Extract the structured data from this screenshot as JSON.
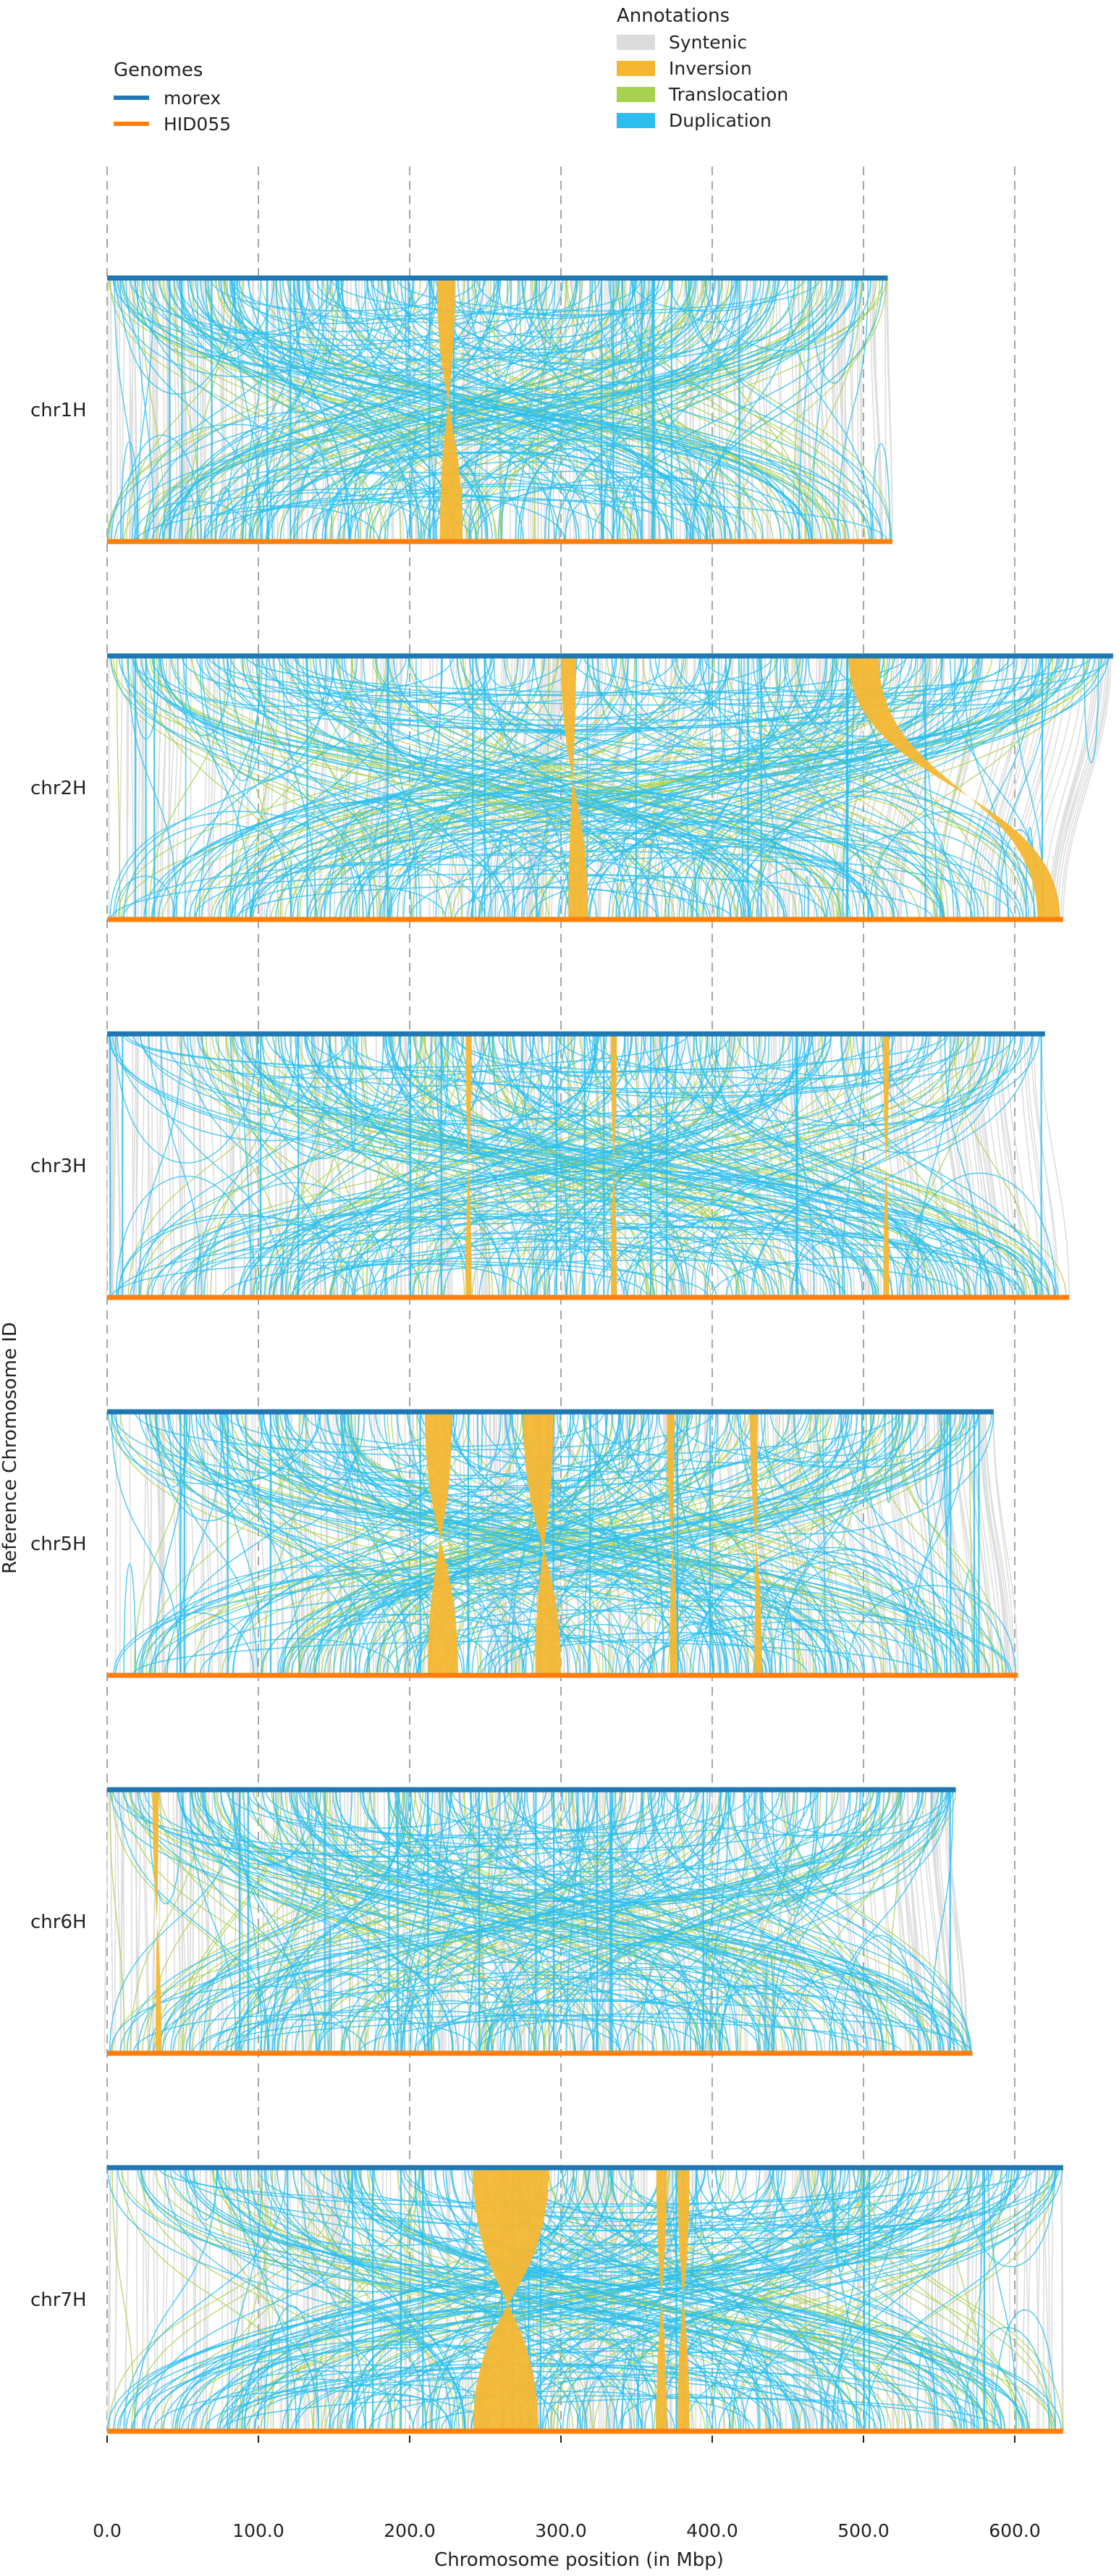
{
  "chart_data": {
    "type": "synteny",
    "xlabel": "Chromosome position (in Mbp)",
    "ylabel": "Reference Chromosome ID",
    "xlim": [
      0,
      670
    ],
    "xticks": [
      0,
      100,
      200,
      300,
      400,
      500,
      600
    ],
    "xtick_labels": [
      "0.0",
      "100.0",
      "200.0",
      "300.0",
      "400.0",
      "500.0",
      "600.0"
    ],
    "grid": "vertical dashed",
    "legends": {
      "genomes": {
        "title": "Genomes",
        "placement": "top-left",
        "items": [
          {
            "name": "morex",
            "color": "#1f77b4"
          },
          {
            "name": "HID055",
            "color": "#ff7f0e"
          }
        ]
      },
      "annotations": {
        "title": "Annotations",
        "placement": "top-center",
        "items": [
          {
            "name": "Syntenic",
            "color": "#dcdcdc"
          },
          {
            "name": "Inversion",
            "color": "#f5b731"
          },
          {
            "name": "Translocation",
            "color": "#a8d14f"
          },
          {
            "name": "Duplication",
            "color": "#2bbff0"
          }
        ]
      }
    },
    "chromosomes": [
      {
        "id": "chr1H",
        "morex_length": 516,
        "hid055_length": 519,
        "inversions": [
          {
            "top": [
              218,
              230
            ],
            "bottom": [
              220,
              235
            ]
          }
        ]
      },
      {
        "id": "chr2H",
        "morex_length": 665,
        "hid055_length": 632,
        "inversions": [
          {
            "top": [
              300,
              310
            ],
            "bottom": [
              305,
              318
            ]
          },
          {
            "top": [
              490,
              510
            ],
            "bottom": [
              615,
              630
            ]
          }
        ]
      },
      {
        "id": "chr3H",
        "morex_length": 620,
        "hid055_length": 636,
        "inversions": [
          {
            "top": [
              237,
              241
            ],
            "bottom": [
              237,
              241
            ]
          },
          {
            "top": [
              333,
              337
            ],
            "bottom": [
              333,
              337
            ]
          },
          {
            "top": [
              513,
              517
            ],
            "bottom": [
              513,
              517
            ]
          }
        ]
      },
      {
        "id": "chr5H",
        "morex_length": 586,
        "hid055_length": 602,
        "inversions": [
          {
            "top": [
              210,
              228
            ],
            "bottom": [
              212,
              232
            ]
          },
          {
            "top": [
              275,
              295
            ],
            "bottom": [
              283,
              300
            ]
          },
          {
            "top": [
              370,
              375
            ],
            "bottom": [
              372,
              377
            ]
          },
          {
            "top": [
              425,
              430
            ],
            "bottom": [
              428,
              433
            ]
          }
        ]
      },
      {
        "id": "chr6H",
        "morex_length": 561,
        "hid055_length": 572,
        "inversions": [
          {
            "top": [
              30,
              34
            ],
            "bottom": [
              32,
              36
            ]
          }
        ]
      },
      {
        "id": "chr7H",
        "morex_length": 632,
        "hid055_length": 632,
        "inversions": [
          {
            "top": [
              242,
              292
            ],
            "bottom": [
              242,
              285
            ]
          },
          {
            "top": [
              363,
              370
            ],
            "bottom": [
              363,
              370
            ]
          },
          {
            "top": [
              377,
              385
            ],
            "bottom": [
              377,
              385
            ]
          }
        ]
      }
    ]
  }
}
